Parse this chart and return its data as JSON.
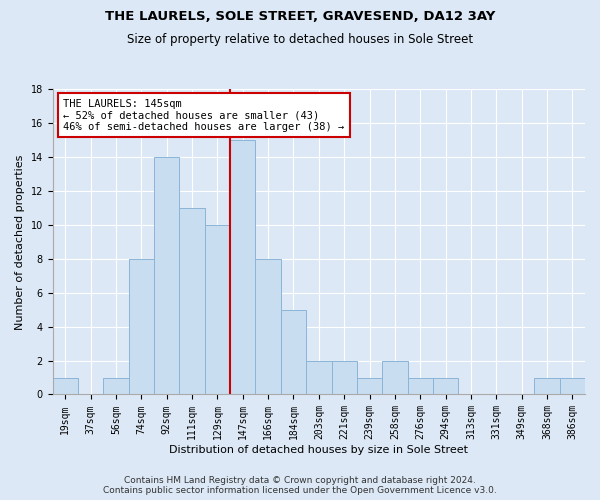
{
  "title": "THE LAURELS, SOLE STREET, GRAVESEND, DA12 3AY",
  "subtitle": "Size of property relative to detached houses in Sole Street",
  "xlabel": "Distribution of detached houses by size in Sole Street",
  "ylabel": "Number of detached properties",
  "bar_labels": [
    "19sqm",
    "37sqm",
    "56sqm",
    "74sqm",
    "92sqm",
    "111sqm",
    "129sqm",
    "147sqm",
    "166sqm",
    "184sqm",
    "203sqm",
    "221sqm",
    "239sqm",
    "258sqm",
    "276sqm",
    "294sqm",
    "313sqm",
    "331sqm",
    "349sqm",
    "368sqm",
    "386sqm"
  ],
  "bar_values": [
    1,
    0,
    1,
    8,
    14,
    11,
    10,
    15,
    8,
    5,
    2,
    2,
    1,
    2,
    1,
    1,
    0,
    0,
    0,
    1,
    1
  ],
  "bar_color": "#c9ddf0",
  "bar_edge_color": "#8ab4d8",
  "subject_bar_index": 7,
  "subject_line_color": "#cc0000",
  "annotation_line1": "THE LAURELS: 145sqm",
  "annotation_line2": "← 52% of detached houses are smaller (43)",
  "annotation_line3": "46% of semi-detached houses are larger (38) →",
  "annotation_box_color": "#ffffff",
  "annotation_box_edge_color": "#cc0000",
  "ylim": [
    0,
    18
  ],
  "yticks": [
    0,
    2,
    4,
    6,
    8,
    10,
    12,
    14,
    16,
    18
  ],
  "background_color": "#dce8f5",
  "plot_background_color": "#dce8f5",
  "footer_line1": "Contains HM Land Registry data © Crown copyright and database right 2024.",
  "footer_line2": "Contains public sector information licensed under the Open Government Licence v3.0.",
  "title_fontsize": 9.5,
  "subtitle_fontsize": 8.5,
  "xlabel_fontsize": 8,
  "ylabel_fontsize": 8,
  "tick_fontsize": 7,
  "annotation_fontsize": 7.5,
  "footer_fontsize": 6.5
}
